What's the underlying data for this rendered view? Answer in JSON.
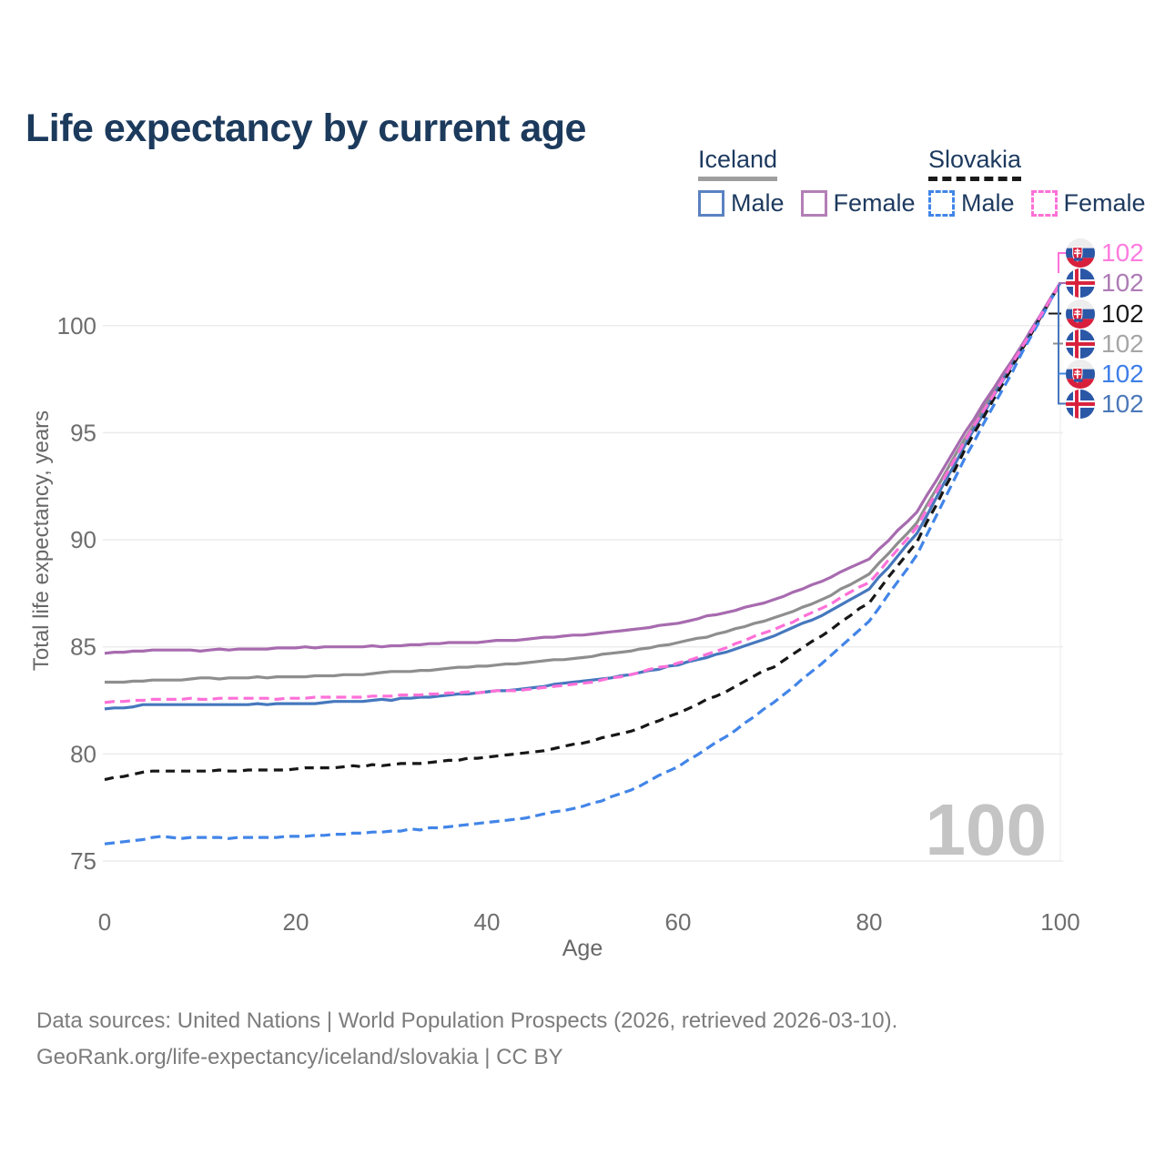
{
  "header": {
    "title": "Life expectancy by current age"
  },
  "legend": {
    "groups": [
      {
        "name": "Iceland",
        "line_style": "solid",
        "underline_color": "#9e9e9e",
        "items": [
          {
            "label": "Male",
            "color": "#4678be"
          },
          {
            "label": "Female",
            "color": "#a76baf"
          }
        ]
      },
      {
        "name": "Slovakia",
        "line_style": "dashed",
        "underline_color": "#1a1a1a",
        "items": [
          {
            "label": "Male",
            "color": "#4285e8"
          },
          {
            "label": "Female",
            "color": "#ff70d8"
          }
        ]
      }
    ]
  },
  "axes": {
    "x": {
      "title": "Age",
      "ticks": [
        "0",
        "20",
        "40",
        "60",
        "80",
        "100"
      ]
    },
    "y": {
      "title": "Total life expectancy, years",
      "ticks": [
        "75",
        "80",
        "85",
        "90",
        "95",
        "100"
      ]
    }
  },
  "watermark": {
    "text": "100"
  },
  "end_labels": {
    "items": [
      {
        "flag": "slovakia-flag-icon",
        "series": "Slovakia Female",
        "value": "102",
        "color": "#ff7bdf"
      },
      {
        "flag": "iceland-flag-icon",
        "series": "Iceland Female",
        "value": "102",
        "color": "#ae7bb5"
      },
      {
        "flag": "slovakia-flag-icon",
        "series": "Slovakia Total",
        "value": "102",
        "color": "#1a1a1a"
      },
      {
        "flag": "iceland-flag-icon",
        "series": "Iceland Total",
        "value": "102",
        "color": "#a6a6a6"
      },
      {
        "flag": "slovakia-flag-icon",
        "series": "Slovakia Male",
        "value": "102",
        "color": "#3f7ee8"
      },
      {
        "flag": "iceland-flag-icon",
        "series": "Iceland Male",
        "value": "102",
        "color": "#4c79b9"
      }
    ]
  },
  "footer": {
    "line1": "Data sources: United Nations | World Population Prospects (2026, retrieved 2026-03-10).",
    "line2": "GeoRank.org/life-expectancy/iceland/slovakia | CC BY"
  },
  "chart_data": {
    "type": "line",
    "title": "Life expectancy by current age",
    "xlabel": "Age",
    "ylabel": "Total life expectancy, years",
    "xlim": [
      0,
      100
    ],
    "ylim": [
      75,
      102
    ],
    "grid": "horizontal-only",
    "legend_position": "top-right",
    "end_value_label": "102",
    "x_ages": [
      0,
      5,
      10,
      15,
      20,
      25,
      30,
      35,
      40,
      45,
      50,
      55,
      60,
      65,
      70,
      75,
      80,
      85,
      90,
      95,
      100
    ],
    "series": [
      {
        "name": "Iceland Total",
        "country": "Iceland",
        "sex": "Total",
        "color": "#8e8e8e",
        "dash": "solid",
        "values": [
          83.35,
          83.45,
          83.5,
          83.55,
          83.6,
          83.7,
          83.8,
          83.95,
          84.1,
          84.3,
          84.5,
          84.8,
          85.2,
          85.7,
          86.35,
          87.2,
          88.4,
          90.8,
          94.7,
          98.3,
          102
        ]
      },
      {
        "name": "Iceland Female",
        "country": "Iceland",
        "sex": "Female",
        "color": "#a76baf",
        "dash": "solid",
        "values": [
          84.7,
          84.85,
          84.85,
          84.9,
          84.95,
          85.0,
          85.05,
          85.15,
          85.25,
          85.4,
          85.55,
          85.8,
          86.1,
          86.6,
          87.2,
          88.05,
          89.1,
          91.3,
          95.0,
          98.4,
          102
        ]
      },
      {
        "name": "Iceland Male",
        "country": "Iceland",
        "sex": "Male",
        "color": "#4678be",
        "dash": "solid",
        "values": [
          82.1,
          82.3,
          82.3,
          82.3,
          82.35,
          82.45,
          82.55,
          82.7,
          82.9,
          83.1,
          83.4,
          83.7,
          84.15,
          84.75,
          85.5,
          86.45,
          87.7,
          90.3,
          94.4,
          98.2,
          102
        ]
      },
      {
        "name": "Slovakia Total",
        "country": "Slovakia",
        "sex": "Total",
        "color": "#171717",
        "dash": "dashed",
        "values": [
          78.8,
          79.2,
          79.2,
          79.25,
          79.3,
          79.4,
          79.5,
          79.65,
          79.85,
          80.1,
          80.5,
          81.05,
          81.9,
          82.9,
          84.1,
          85.5,
          87.1,
          89.9,
          94.2,
          98.1,
          102
        ]
      },
      {
        "name": "Slovakia Male",
        "country": "Slovakia",
        "sex": "Male",
        "color": "#4285e8",
        "dash": "dashed",
        "values": [
          75.8,
          76.1,
          76.1,
          76.1,
          76.15,
          76.25,
          76.4,
          76.55,
          76.8,
          77.1,
          77.55,
          78.3,
          79.4,
          80.8,
          82.4,
          84.2,
          86.2,
          89.3,
          93.8,
          97.9,
          102
        ]
      },
      {
        "name": "Slovakia Female",
        "country": "Slovakia",
        "sex": "Female",
        "color": "#ff70d8",
        "dash": "dashed",
        "values": [
          82.4,
          82.55,
          82.55,
          82.6,
          82.6,
          82.65,
          82.7,
          82.8,
          82.9,
          83.05,
          83.3,
          83.7,
          84.25,
          84.95,
          85.8,
          86.8,
          88.0,
          90.6,
          94.6,
          98.25,
          102
        ]
      }
    ]
  }
}
